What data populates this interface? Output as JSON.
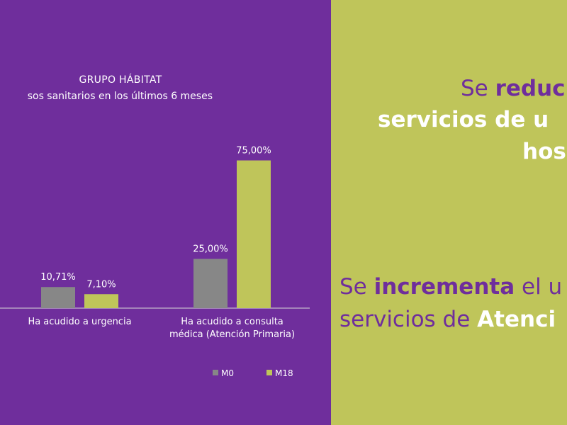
{
  "colors": {
    "purple": "#6f2e9c",
    "olive": "#bfc55a",
    "series_m0": "#878787",
    "series_m18": "#bfc55a",
    "text": "#ffffff"
  },
  "chart_data": {
    "type": "bar",
    "title": "GRUPO HÁBITAT",
    "subtitle": "sos sanitarios en los últimos 6 meses",
    "categories": [
      [
        "Ha acudido a urgencia"
      ],
      [
        "Ha acudido a consulta",
        "médica (Atención Primaria)"
      ]
    ],
    "series": [
      {
        "name": "M0",
        "values": [
          10.71,
          25.0
        ],
        "labels": [
          "10,71%",
          "25,00%"
        ]
      },
      {
        "name": "M18",
        "values": [
          7.1,
          75.0
        ],
        "labels": [
          "7,10%",
          "75,00%"
        ]
      }
    ],
    "ylim": [
      0,
      100
    ],
    "grid": false,
    "legend": "bottom-right"
  },
  "statements": {
    "first": {
      "line1_regular": "Se ",
      "line1_bold": "reduc",
      "line2": "servicios de u",
      "line3": "hos"
    },
    "second": {
      "line1_regular": "Se ",
      "line1_bold": "incrementa",
      "line1_rest": " el u",
      "line2_regular": "servicios de ",
      "line2_bold": "Atenci"
    }
  }
}
